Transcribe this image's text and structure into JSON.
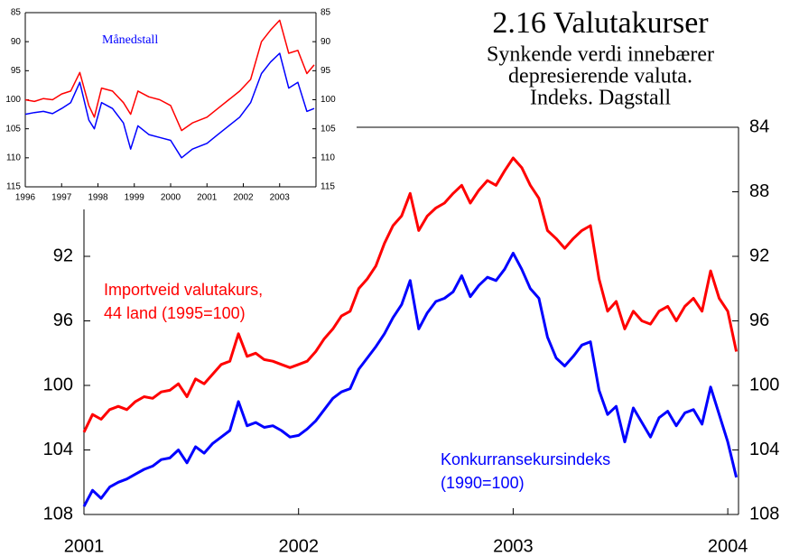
{
  "chart_data": [
    {
      "type": "line",
      "title": "2.16 Valutakurser",
      "subtitle": [
        "Synkende verdi innebærer",
        "depresierende valuta.",
        "Indeks. Dagstall"
      ],
      "x": [
        2001.0,
        2001.04,
        2001.08,
        2001.12,
        2001.16,
        2001.2,
        2001.24,
        2001.28,
        2001.32,
        2001.36,
        2001.4,
        2001.44,
        2001.48,
        2001.52,
        2001.56,
        2001.6,
        2001.64,
        2001.68,
        2001.72,
        2001.76,
        2001.8,
        2001.84,
        2001.88,
        2001.92,
        2001.96,
        2002.0,
        2002.04,
        2002.08,
        2002.12,
        2002.16,
        2002.2,
        2002.24,
        2002.28,
        2002.32,
        2002.36,
        2002.4,
        2002.44,
        2002.48,
        2002.52,
        2002.56,
        2002.6,
        2002.64,
        2002.68,
        2002.72,
        2002.76,
        2002.8,
        2002.84,
        2002.88,
        2002.92,
        2002.96,
        2003.0,
        2003.04,
        2003.08,
        2003.12,
        2003.16,
        2003.2,
        2003.24,
        2003.28,
        2003.32,
        2003.36,
        2003.4,
        2003.44,
        2003.48,
        2003.52,
        2003.56,
        2003.6,
        2003.64,
        2003.68,
        2003.72,
        2003.76,
        2003.8,
        2003.84,
        2003.88,
        2003.92,
        2003.96,
        2004.0,
        2004.04
      ],
      "series": [
        {
          "name_lines": [
            "Importveid valutakurs,",
            "44 land (1995=100)"
          ],
          "color": "#ff0000",
          "values": [
            102.9,
            101.8,
            102.1,
            101.5,
            101.3,
            101.5,
            101.0,
            100.7,
            100.8,
            100.4,
            100.3,
            99.9,
            100.7,
            99.6,
            99.9,
            99.3,
            98.7,
            98.5,
            96.8,
            98.2,
            98.0,
            98.4,
            98.5,
            98.7,
            98.9,
            98.7,
            98.5,
            97.9,
            97.1,
            96.5,
            95.7,
            95.4,
            94.0,
            93.4,
            92.6,
            91.2,
            90.1,
            89.5,
            88.1,
            90.4,
            89.5,
            89.0,
            88.7,
            88.1,
            87.6,
            88.7,
            87.9,
            87.3,
            87.6,
            86.7,
            85.9,
            86.5,
            87.6,
            88.4,
            90.4,
            90.9,
            91.5,
            90.9,
            90.4,
            90.1,
            93.4,
            95.4,
            94.8,
            96.5,
            95.4,
            96.0,
            96.2,
            95.4,
            95.1,
            96.0,
            95.1,
            94.6,
            95.4,
            92.9,
            94.6,
            95.4,
            97.9
          ]
        },
        {
          "name_lines": [
            "Konkurransekursindeks",
            "(1990=100)"
          ],
          "color": "#0000ff",
          "values": [
            107.5,
            106.5,
            107.0,
            106.3,
            106.0,
            105.8,
            105.5,
            105.2,
            105.0,
            104.6,
            104.5,
            104.0,
            104.8,
            103.8,
            104.2,
            103.6,
            103.2,
            102.8,
            101.0,
            102.5,
            102.3,
            102.6,
            102.5,
            102.8,
            103.2,
            103.1,
            102.7,
            102.2,
            101.5,
            100.8,
            100.4,
            100.2,
            99.0,
            98.3,
            97.6,
            96.8,
            95.8,
            95.0,
            93.5,
            96.5,
            95.5,
            94.8,
            94.6,
            94.2,
            93.2,
            94.5,
            93.8,
            93.3,
            93.5,
            92.8,
            91.8,
            92.8,
            94.0,
            94.6,
            97.0,
            98.3,
            98.8,
            98.2,
            97.5,
            97.3,
            100.3,
            101.8,
            101.3,
            103.5,
            101.4,
            102.3,
            103.2,
            102.0,
            101.6,
            102.5,
            101.7,
            101.5,
            102.4,
            100.1,
            101.8,
            103.5,
            105.7
          ]
        }
      ],
      "xlim": [
        2001,
        2004.05
      ],
      "xticks": [
        2001,
        2002,
        2003,
        2004
      ],
      "ylim": [
        84,
        108
      ],
      "y_inverted": true,
      "yticks": [
        92,
        96,
        100,
        104,
        108
      ],
      "yticks_right": [
        84,
        88,
        92,
        96,
        100,
        104,
        108
      ]
    },
    {
      "type": "line",
      "annotation": "Månedstall",
      "x": [
        1996.0,
        1996.25,
        1996.5,
        1996.75,
        1997.0,
        1997.25,
        1997.5,
        1997.75,
        1997.9,
        1998.1,
        1998.4,
        1998.7,
        1998.9,
        1999.1,
        1999.4,
        1999.7,
        2000.0,
        2000.3,
        2000.6,
        2001.0,
        2001.3,
        2001.6,
        2001.9,
        2002.2,
        2002.5,
        2002.75,
        2003.0,
        2003.25,
        2003.5,
        2003.75,
        2003.95
      ],
      "series": [
        {
          "color": "#ff0000",
          "values": [
            100.0,
            100.3,
            99.8,
            100.0,
            99.0,
            98.5,
            95.3,
            101.0,
            103.0,
            98.0,
            98.5,
            100.5,
            102.5,
            98.5,
            99.5,
            100.0,
            101.0,
            105.3,
            104.0,
            103.0,
            101.5,
            100.0,
            98.5,
            96.5,
            90.0,
            88.0,
            86.3,
            92.0,
            91.5,
            95.5,
            94.0
          ]
        },
        {
          "color": "#0000ff",
          "values": [
            102.5,
            102.2,
            102.0,
            102.4,
            101.5,
            100.5,
            97.0,
            103.5,
            105.0,
            100.5,
            101.5,
            104.0,
            108.5,
            104.5,
            106.0,
            106.5,
            107.0,
            110.0,
            108.5,
            107.5,
            106.0,
            104.5,
            103.0,
            100.5,
            95.5,
            93.5,
            92.0,
            98.0,
            97.0,
            102.0,
            101.5
          ]
        }
      ],
      "xlim": [
        1996,
        2004
      ],
      "xticks": [
        1996,
        1997,
        1998,
        1999,
        2000,
        2001,
        2002,
        2003
      ],
      "ylim": [
        85,
        115
      ],
      "y_inverted": true,
      "yticks": [
        85,
        90,
        95,
        100,
        105,
        110,
        115
      ],
      "yticks_right": [
        85,
        90,
        95,
        100,
        105,
        110,
        115
      ]
    }
  ]
}
